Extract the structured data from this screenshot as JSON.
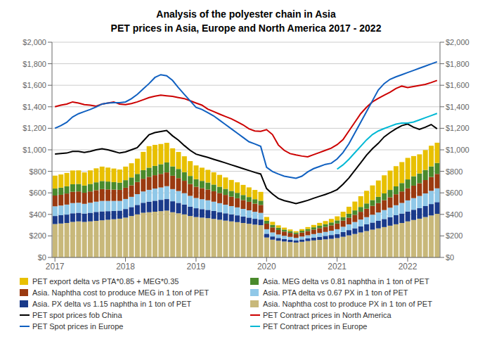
{
  "chart_data": {
    "type": "bar",
    "title": "Analysis of the polyester chain in Asia",
    "subtitle": "PET prices in Asia, Europe and North America 2017 - 2022",
    "stacked": true,
    "grid": true,
    "legend": "bottom",
    "categories": [
      "2017",
      null,
      null,
      null,
      null,
      null,
      null,
      null,
      null,
      null,
      null,
      null,
      "2018",
      null,
      null,
      null,
      null,
      null,
      null,
      null,
      null,
      null,
      null,
      null,
      "2019",
      null,
      null,
      null,
      null,
      null,
      null,
      null,
      null,
      null,
      null,
      null,
      "2020",
      null,
      null,
      null,
      null,
      null,
      null,
      null,
      null,
      null,
      null,
      null,
      "2021",
      null,
      null,
      null,
      null,
      null,
      null,
      null,
      null,
      null,
      null,
      null,
      "2022",
      null,
      null,
      null,
      null,
      null
    ],
    "ylim": [
      0,
      2000
    ],
    "yticks": [
      {
        "value": 0,
        "label": "$0"
      },
      {
        "value": 200,
        "label": "$200"
      },
      {
        "value": 400,
        "label": "$400"
      },
      {
        "value": 600,
        "label": "$600"
      },
      {
        "value": 800,
        "label": "$800"
      },
      {
        "value": 1000,
        "label": "$1,000"
      },
      {
        "value": 1200,
        "label": "$1,200"
      },
      {
        "value": 1400,
        "label": "$1,400"
      },
      {
        "value": 1600,
        "label": "$1,600"
      },
      {
        "value": 1800,
        "label": "$1,800"
      },
      {
        "value": 2000,
        "label": "$2,000"
      }
    ],
    "y2lim": [
      0,
      2000
    ],
    "y2ticks": [
      {
        "value": 0,
        "label": "$0"
      },
      {
        "value": 200,
        "label": "$200"
      },
      {
        "value": 400,
        "label": "$400"
      },
      {
        "value": 600,
        "label": "$600"
      },
      {
        "value": 800,
        "label": "$800"
      },
      {
        "value": 1000,
        "label": "$1,000"
      },
      {
        "value": 1200,
        "label": "$1,200"
      },
      {
        "value": 1400,
        "label": "$1,400"
      },
      {
        "value": 1600,
        "label": "$1,600"
      },
      {
        "value": 1800,
        "label": "$1,800"
      },
      {
        "value": 2000,
        "label": "$2,000"
      }
    ],
    "series": [
      {
        "name": "Asia. Naphtha cost to produce PX in 1 ton of PET",
        "type": "bar",
        "color": "#c8b87a",
        "values": [
          310,
          315,
          320,
          330,
          335,
          330,
          335,
          340,
          345,
          350,
          355,
          360,
          370,
          385,
          400,
          415,
          420,
          425,
          430,
          435,
          420,
          410,
          400,
          385,
          375,
          370,
          365,
          358,
          350,
          342,
          335,
          328,
          320,
          313,
          305,
          300,
          185,
          165,
          155,
          148,
          143,
          138,
          145,
          152,
          158,
          163,
          168,
          173,
          180,
          192,
          205,
          218,
          232,
          245,
          258,
          270,
          282,
          295,
          308,
          320,
          335,
          348,
          360,
          375,
          390,
          405
        ]
      },
      {
        "name": "Asia. PX delta vs 1.15 naphtha in 1 ton of PET",
        "type": "bar",
        "color": "#1a3a8a",
        "values": [
          75,
          77,
          78,
          80,
          80,
          78,
          80,
          83,
          83,
          80,
          77,
          75,
          80,
          83,
          88,
          93,
          98,
          102,
          105,
          107,
          102,
          97,
          92,
          87,
          82,
          79,
          77,
          74,
          71,
          68,
          65,
          63,
          60,
          57,
          54,
          52,
          35,
          30,
          26,
          24,
          21,
          19,
          22,
          25,
          27,
          29,
          32,
          35,
          38,
          44,
          49,
          53,
          57,
          62,
          66,
          70,
          75,
          79,
          84,
          88,
          92,
          95,
          98,
          102,
          106,
          109
        ]
      },
      {
        "name": "Asia. PTA delta vs 0.67 PX in 1 ton of PET",
        "type": "bar",
        "color": "#90c8e8",
        "values": [
          90,
          90,
          93,
          95,
          93,
          90,
          93,
          95,
          97,
          95,
          93,
          90,
          93,
          95,
          100,
          105,
          110,
          113,
          115,
          120,
          113,
          110,
          105,
          100,
          95,
          92,
          89,
          86,
          83,
          80,
          77,
          74,
          71,
          68,
          65,
          62,
          42,
          37,
          32,
          29,
          27,
          25,
          27,
          29,
          32,
          35,
          37,
          40,
          44,
          49,
          53,
          58,
          63,
          68,
          73,
          78,
          83,
          88,
          93,
          98,
          103,
          108,
          113,
          118,
          123,
          128
        ]
      },
      {
        "name": "Asia. Naphtha cost to produce MEG in 1 ton of PET",
        "type": "bar",
        "color": "#9b3a10",
        "values": [
          100,
          100,
          103,
          105,
          105,
          103,
          105,
          107,
          110,
          107,
          105,
          103,
          105,
          107,
          113,
          118,
          121,
          124,
          126,
          128,
          124,
          120,
          115,
          110,
          105,
          103,
          100,
          97,
          94,
          91,
          88,
          85,
          82,
          79,
          76,
          74,
          52,
          47,
          42,
          39,
          37,
          35,
          37,
          39,
          42,
          45,
          47,
          50,
          53,
          57,
          62,
          67,
          72,
          77,
          82,
          87,
          92,
          97,
          102,
          107,
          112,
          116,
          119,
          124,
          129,
          134
        ]
      },
      {
        "name": "Asia. MEG delta vs 0.81 naphtha in 1 ton of PET",
        "type": "bar",
        "color": "#4a8a2c",
        "values": [
          65,
          67,
          67,
          70,
          70,
          67,
          70,
          73,
          75,
          73,
          70,
          67,
          70,
          73,
          75,
          80,
          85,
          87,
          90,
          93,
          87,
          85,
          80,
          75,
          70,
          67,
          65,
          62,
          59,
          56,
          53,
          50,
          47,
          44,
          41,
          39,
          27,
          24,
          21,
          19,
          17,
          15,
          17,
          19,
          21,
          23,
          25,
          27,
          29,
          33,
          37,
          41,
          45,
          50,
          54,
          58,
          63,
          68,
          73,
          78,
          83,
          87,
          90,
          94,
          98,
          102
        ]
      },
      {
        "name": "PET export delta vs PTA*0.85 + MEG*0.35",
        "type": "bar",
        "color": "#e8c000",
        "values": [
          120,
          122,
          124,
          128,
          126,
          122,
          126,
          130,
          134,
          130,
          126,
          122,
          126,
          132,
          142,
          170,
          200,
          195,
          188,
          182,
          168,
          158,
          148,
          138,
          128,
          123,
          118,
          114,
          110,
          106,
          102,
          98,
          94,
          90,
          86,
          82,
          35,
          28,
          22,
          18,
          15,
          12,
          15,
          18,
          22,
          26,
          29,
          33,
          38,
          50,
          65,
          82,
          100,
          118,
          136,
          152,
          168,
          180,
          188,
          195,
          200,
          188,
          178,
          185,
          192,
          188
        ]
      },
      {
        "name": "PET spot prices fob China",
        "type": "line",
        "color": "#000000",
        "values": [
          960,
          965,
          970,
          985,
          985,
          975,
          985,
          1000,
          1010,
          1000,
          985,
          970,
          980,
          1000,
          1020,
          1080,
          1140,
          1160,
          1170,
          1180,
          1130,
          1090,
          1040,
          995,
          960,
          945,
          930,
          912,
          895,
          878,
          860,
          843,
          825,
          808,
          790,
          775,
          640,
          590,
          548,
          528,
          515,
          500,
          515,
          530,
          550,
          568,
          585,
          605,
          630,
          680,
          738,
          808,
          878,
          950,
          1010,
          1060,
          1120,
          1160,
          1195,
          1225,
          1240,
          1210,
          1190,
          1210,
          1235,
          1195
        ]
      },
      {
        "name": "PET Contract prices in North America",
        "type": "line",
        "color": "#cc0000",
        "values": [
          1400,
          1415,
          1425,
          1445,
          1435,
          1420,
          1415,
          1405,
          1425,
          1435,
          1445,
          1425,
          1420,
          1430,
          1445,
          1465,
          1485,
          1498,
          1508,
          1502,
          1496,
          1486,
          1476,
          1456,
          1435,
          1415,
          1378,
          1355,
          1332,
          1310,
          1288,
          1260,
          1232,
          1195,
          1175,
          1172,
          1188,
          1142,
          1045,
          995,
          965,
          952,
          942,
          935,
          955,
          975,
          995,
          1015,
          1048,
          1095,
          1175,
          1255,
          1335,
          1395,
          1445,
          1478,
          1508,
          1535,
          1570,
          1592,
          1578,
          1588,
          1598,
          1608,
          1625,
          1645
        ]
      },
      {
        "name": "PET Spot prices in Europe",
        "type": "line",
        "color": "#1060c0",
        "values": [
          1200,
          1225,
          1255,
          1305,
          1335,
          1355,
          1375,
          1398,
          1425,
          1435,
          1438,
          1438,
          1445,
          1475,
          1515,
          1565,
          1615,
          1672,
          1698,
          1688,
          1645,
          1578,
          1515,
          1455,
          1395,
          1375,
          1345,
          1315,
          1275,
          1235,
          1195,
          1155,
          1115,
          1075,
          1055,
          1032,
          838,
          798,
          775,
          755,
          745,
          735,
          755,
          795,
          825,
          845,
          865,
          875,
          915,
          975,
          1055,
          1155,
          1255,
          1355,
          1455,
          1555,
          1615,
          1655,
          1678,
          1698,
          1718,
          1738,
          1758,
          1778,
          1798,
          1818
        ]
      },
      {
        "name": "PET Contract prices in Europe",
        "type": "line",
        "color": "#00b8d4",
        "values": [
          null,
          null,
          null,
          null,
          null,
          null,
          null,
          null,
          null,
          null,
          null,
          null,
          null,
          null,
          null,
          null,
          null,
          null,
          null,
          null,
          null,
          null,
          null,
          null,
          null,
          null,
          null,
          null,
          null,
          null,
          null,
          null,
          null,
          null,
          null,
          null,
          null,
          null,
          null,
          null,
          null,
          null,
          null,
          null,
          null,
          null,
          null,
          null,
          820,
          860,
          912,
          972,
          1032,
          1092,
          1142,
          1175,
          1198,
          1218,
          1238,
          1248,
          1248,
          1258,
          1278,
          1298,
          1318,
          1338
        ]
      }
    ]
  }
}
